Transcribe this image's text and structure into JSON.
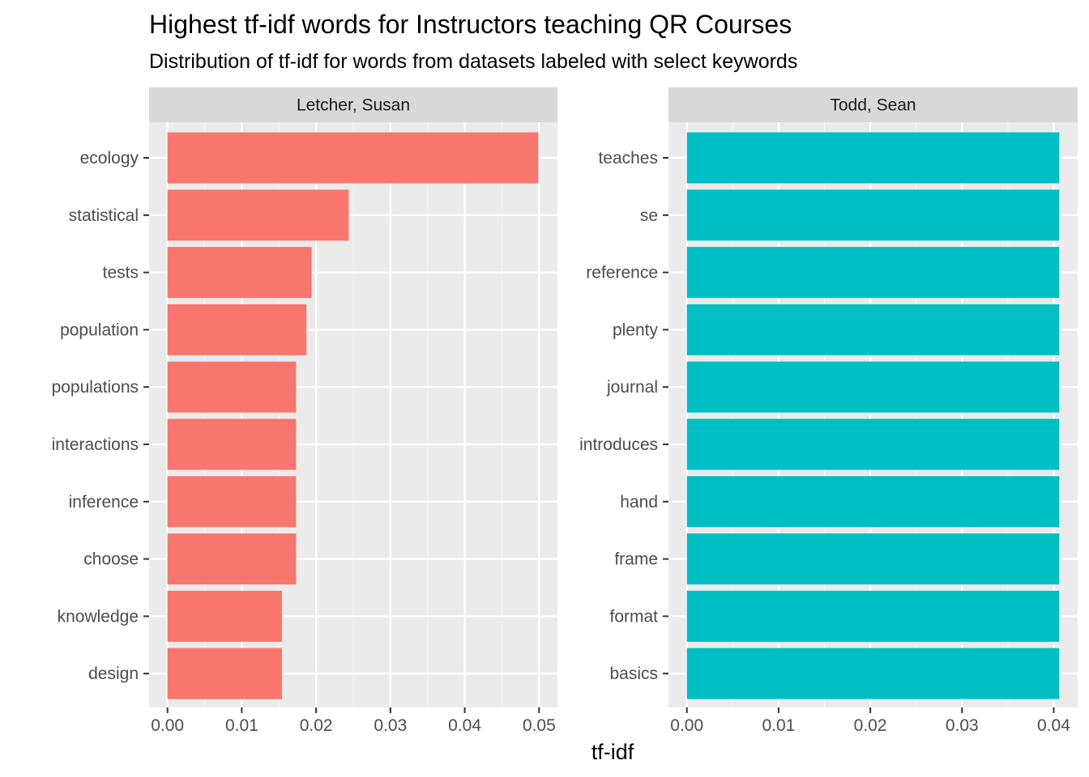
{
  "chart_data": {
    "type": "bar",
    "orientation": "horizontal",
    "title": "Highest tf-idf words for Instructors teaching QR Courses",
    "subtitle": "Distribution of tf-idf for words from datasets labeled with select keywords",
    "xlabel": "tf-idf",
    "ylabel": "",
    "grid": true,
    "facets": [
      {
        "label": "Letcher, Susan",
        "color": "#F8766D",
        "xlim": [
          0,
          0.05
        ],
        "xticks": [
          "0.00",
          "0.01",
          "0.02",
          "0.03",
          "0.04",
          "0.05"
        ],
        "categories": [
          "ecology",
          "statistical",
          "tests",
          "population",
          "populations",
          "interactions",
          "inference",
          "choose",
          "knowledge",
          "design"
        ],
        "values": [
          0.0499,
          0.0244,
          0.0194,
          0.0187,
          0.0173,
          0.0173,
          0.0173,
          0.0173,
          0.0154,
          0.0154
        ]
      },
      {
        "label": "Todd, Sean",
        "color": "#00BFC4",
        "xlim": [
          0,
          0.0406
        ],
        "xticks": [
          "0.00",
          "0.01",
          "0.02",
          "0.03",
          "0.04"
        ],
        "categories": [
          "teaches",
          "se",
          "reference",
          "plenty",
          "journal",
          "introduces",
          "hand",
          "frame",
          "format",
          "basics"
        ],
        "values": [
          0.0406,
          0.0406,
          0.0406,
          0.0406,
          0.0406,
          0.0406,
          0.0406,
          0.0406,
          0.0406,
          0.0406
        ]
      }
    ]
  }
}
